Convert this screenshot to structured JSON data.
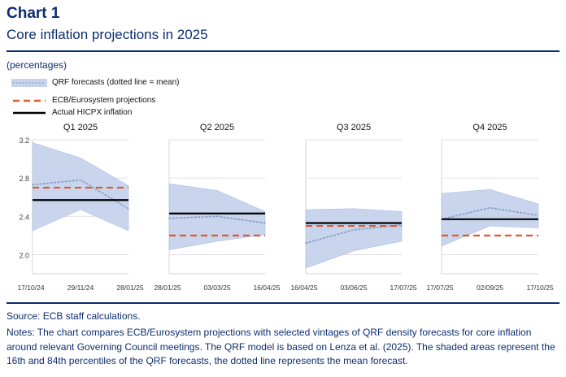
{
  "header": {
    "chart_label": "Chart 1",
    "title": "Core inflation projections in 2025",
    "units": "(percentages)"
  },
  "legend": {
    "qrf": "QRF forecasts (dotted line = mean)",
    "ecb": "ECB/Eurosystem projections",
    "hicp": "Actual HICPX inflation"
  },
  "colors": {
    "band": "#c6d3ec",
    "band_edge": "#a9bce0",
    "mean": "#8aa0cc",
    "ecb": "#e4572e",
    "hicp": "#000000",
    "title": "#0b2d6f"
  },
  "chart_data": {
    "type": "area",
    "ylim": [
      1.8,
      3.2
    ],
    "yticks": [
      "3.2",
      "2.8",
      "2.4",
      "2.0"
    ],
    "ytick_values": [
      3.2,
      2.8,
      2.4,
      2.0
    ],
    "panels": [
      {
        "name": "Q1 2025",
        "xticks": [
          "17/10/24",
          "29/11/24",
          "28/01/25"
        ],
        "x": [
          0,
          1,
          2
        ],
        "band_upper": [
          3.17,
          3.01,
          2.72
        ],
        "band_lower": [
          2.25,
          2.47,
          2.25
        ],
        "mean": [
          2.73,
          2.78,
          2.48
        ],
        "ecb": 2.7,
        "hicp": 2.57
      },
      {
        "name": "Q2 2025",
        "xticks": [
          "28/01/25",
          "03/03/25",
          "16/04/25"
        ],
        "x": [
          0,
          1,
          2
        ],
        "band_upper": [
          2.74,
          2.67,
          2.45
        ],
        "band_lower": [
          2.05,
          2.14,
          2.21
        ],
        "mean": [
          2.38,
          2.4,
          2.33
        ],
        "ecb": 2.2,
        "hicp": 2.43
      },
      {
        "name": "Q3 2025",
        "xticks": [
          "16/04/25",
          "03/06/25",
          "17/07/25"
        ],
        "x": [
          0,
          1,
          2
        ],
        "band_upper": [
          2.47,
          2.48,
          2.45
        ],
        "band_lower": [
          1.86,
          2.04,
          2.14
        ],
        "mean": [
          2.12,
          2.26,
          2.31
        ],
        "ecb": 2.3,
        "hicp": 2.33
      },
      {
        "name": "Q4 2025",
        "xticks": [
          "17/07/25",
          "02/09/25",
          "17/10/25"
        ],
        "x": [
          0,
          1,
          2
        ],
        "band_upper": [
          2.64,
          2.68,
          2.53
        ],
        "band_lower": [
          2.09,
          2.3,
          2.28
        ],
        "mean": [
          2.37,
          2.49,
          2.41
        ],
        "ecb": 2.2,
        "hicp": 2.37
      }
    ]
  },
  "footer": {
    "source": "Source: ECB staff calculations.",
    "notes": "Notes: The chart compares ECB/Eurosystem projections with selected vintages of QRF density forecasts for core inflation around relevant Governing Council meetings. The QRF model is based on Lenza et al. (2025). The shaded areas represent the 16th and 84th percentiles of the QRF forecasts, the dotted line represents the mean forecast."
  }
}
